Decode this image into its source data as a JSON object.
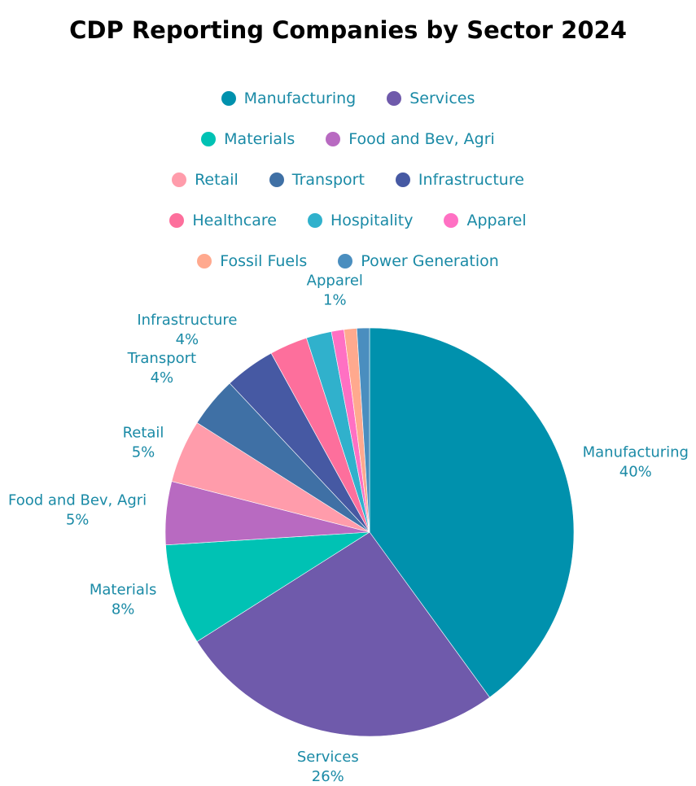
{
  "chart_data": {
    "type": "pie",
    "title": "CDP Reporting Companies by Sector 2024",
    "slices": [
      {
        "label": "Manufacturing",
        "value": 40,
        "display": "40%",
        "color": "#0091ad"
      },
      {
        "label": "Services",
        "value": 26,
        "display": "26%",
        "color": "#6f5aab"
      },
      {
        "label": "Materials",
        "value": 8,
        "display": "8%",
        "color": "#00c2b4"
      },
      {
        "label": "Food and Bev, Agri",
        "value": 5,
        "display": "5%",
        "color": "#b86ac1"
      },
      {
        "label": "Retail",
        "value": 5,
        "display": "5%",
        "color": "#ff9cab"
      },
      {
        "label": "Transport",
        "value": 4,
        "display": "4%",
        "color": "#3f70a5"
      },
      {
        "label": "Infrastructure",
        "value": 4,
        "display": "4%",
        "color": "#4659a3"
      },
      {
        "label": "Healthcare",
        "value": 3,
        "display": "3%",
        "color": "#fd6f9c"
      },
      {
        "label": "Hospitality",
        "value": 2,
        "display": "2%",
        "color": "#30b1cc"
      },
      {
        "label": "Apparel",
        "value": 1,
        "display": "1%",
        "color": "#ff70c3"
      },
      {
        "label": "Fossil Fuels",
        "value": 1,
        "display": "1%",
        "color": "#ffa98e"
      },
      {
        "label": "Power Generation",
        "value": 1,
        "display": "1%",
        "color": "#4a8ebf"
      }
    ],
    "legend_rows": [
      [
        "Manufacturing",
        "Services"
      ],
      [
        "Materials",
        "Food and Bev, Agri"
      ],
      [
        "Retail",
        "Transport",
        "Infrastructure"
      ],
      [
        "Healthcare",
        "Hospitality",
        "Apparel"
      ],
      [
        "Fossil Fuels",
        "Power Generation"
      ]
    ],
    "labeled_slices": [
      "Manufacturing",
      "Services",
      "Materials",
      "Food and Bev, Agri",
      "Retail",
      "Transport",
      "Infrastructure",
      "Apparel"
    ],
    "label_color": "#1a8aa6",
    "legend": "top"
  }
}
